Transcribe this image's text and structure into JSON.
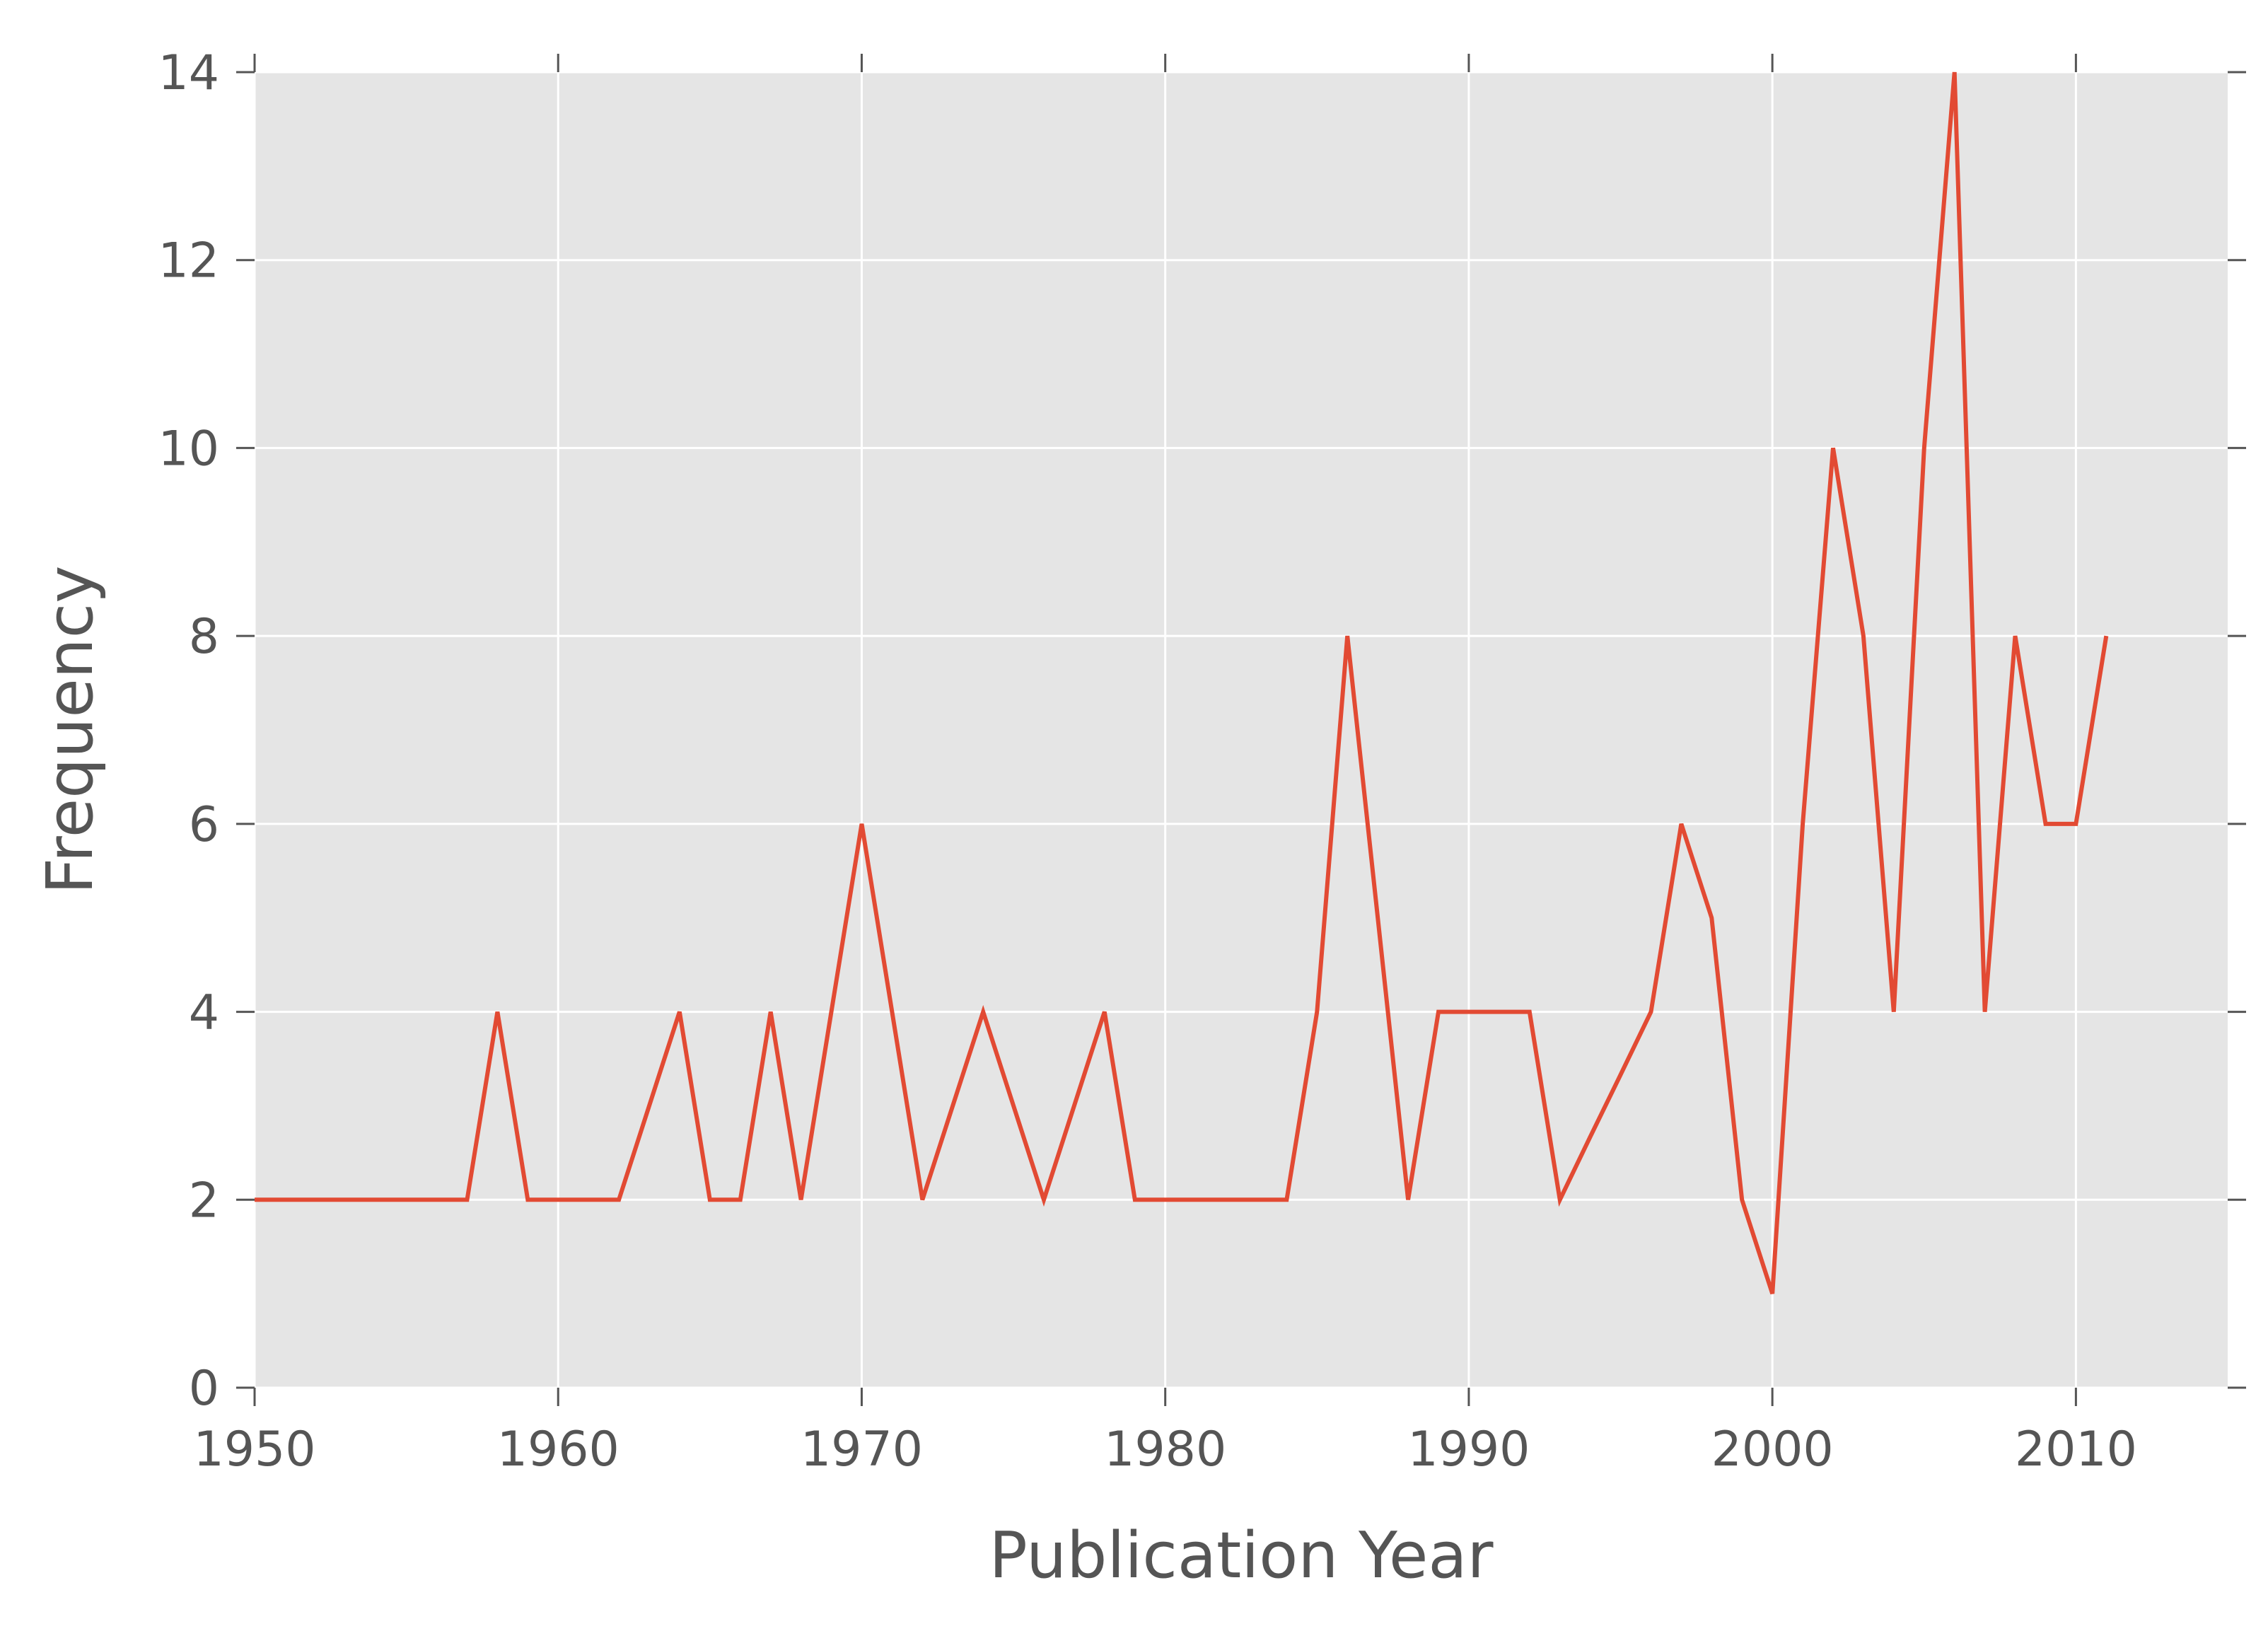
{
  "chart_data": {
    "type": "line",
    "title": "",
    "xlabel": "Publication Year",
    "ylabel": "Frequency",
    "xlim": [
      1950,
      2015
    ],
    "ylim": [
      0,
      14
    ],
    "xticks": [
      1950,
      1960,
      1970,
      1980,
      1990,
      2000,
      2010
    ],
    "yticks": [
      0,
      2,
      4,
      6,
      8,
      10,
      12,
      14
    ],
    "grid": true,
    "background": "#e5e5e5",
    "grid_color": "#ffffff",
    "series": [
      {
        "color": "#e24a33",
        "x": [
          1950,
          1951,
          1952,
          1953,
          1954,
          1955,
          1956,
          1957,
          1958,
          1959,
          1960,
          1961,
          1962,
          1963,
          1964,
          1965,
          1966,
          1967,
          1968,
          1969,
          1970,
          1971,
          1972,
          1973,
          1974,
          1975,
          1976,
          1977,
          1978,
          1979,
          1980,
          1981,
          1982,
          1983,
          1984,
          1985,
          1986,
          1987,
          1988,
          1989,
          1990,
          1991,
          1992,
          1993,
          1994,
          1995,
          1996,
          1997,
          1998,
          1999,
          2000,
          2001,
          2002,
          2003,
          2004,
          2005,
          2006,
          2007,
          2008,
          2009,
          2010,
          2011
        ],
        "y": [
          2,
          2,
          2,
          2,
          2,
          2,
          2,
          2,
          4,
          2,
          2,
          2,
          2,
          3,
          4,
          2,
          2,
          4,
          2,
          4,
          6,
          4,
          2,
          3,
          4,
          3,
          2,
          3,
          4,
          2,
          2,
          2,
          2,
          2,
          2,
          4,
          8,
          5,
          2,
          4,
          4,
          4,
          4,
          2,
          2.67,
          3.33,
          4,
          6,
          5,
          2,
          1,
          6,
          10,
          8,
          4,
          10,
          14,
          4,
          8,
          6,
          6,
          8
        ]
      }
    ]
  }
}
